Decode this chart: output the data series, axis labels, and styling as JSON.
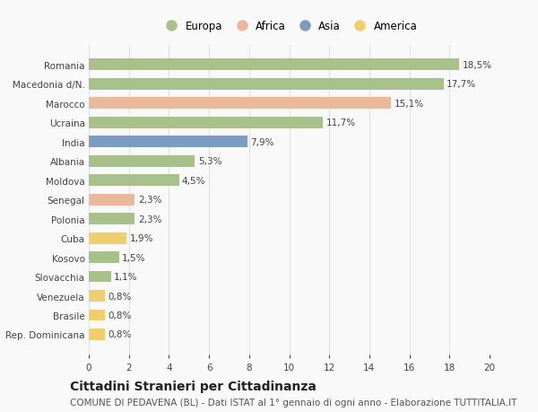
{
  "countries": [
    "Romania",
    "Macedonia d/N.",
    "Marocco",
    "Ucraina",
    "India",
    "Albania",
    "Moldova",
    "Senegal",
    "Polonia",
    "Cuba",
    "Kosovo",
    "Slovacchia",
    "Venezuela",
    "Brasile",
    "Rep. Dominicana"
  ],
  "values": [
    18.5,
    17.7,
    15.1,
    11.7,
    7.9,
    5.3,
    4.5,
    2.3,
    2.3,
    1.9,
    1.5,
    1.1,
    0.8,
    0.8,
    0.8
  ],
  "labels": [
    "18,5%",
    "17,7%",
    "15,1%",
    "11,7%",
    "7,9%",
    "5,3%",
    "4,5%",
    "2,3%",
    "2,3%",
    "1,9%",
    "1,5%",
    "1,1%",
    "0,8%",
    "0,8%",
    "0,8%"
  ],
  "continents": [
    "Europa",
    "Europa",
    "Africa",
    "Europa",
    "Asia",
    "Europa",
    "Europa",
    "Africa",
    "Europa",
    "America",
    "Europa",
    "Europa",
    "America",
    "America",
    "America"
  ],
  "continent_colors": {
    "Europa": "#a8c08a",
    "Africa": "#e8b99a",
    "Asia": "#7b9cc4",
    "America": "#f0ce6e"
  },
  "legend_order": [
    "Europa",
    "Africa",
    "Asia",
    "America"
  ],
  "xlim": [
    0,
    20
  ],
  "xticks": [
    0,
    2,
    4,
    6,
    8,
    10,
    12,
    14,
    16,
    18,
    20
  ],
  "title": "Cittadini Stranieri per Cittadinanza",
  "subtitle": "COMUNE DI PEDAVENA (BL) - Dati ISTAT al 1° gennaio di ogni anno - Elaborazione TUTTITALIA.IT",
  "background_color": "#f9f9f9",
  "bar_height": 0.6,
  "grid_color": "#e0e0e0",
  "label_fontsize": 7.5,
  "tick_fontsize": 7.5,
  "legend_fontsize": 8.5,
  "title_fontsize": 10,
  "subtitle_fontsize": 7.5
}
